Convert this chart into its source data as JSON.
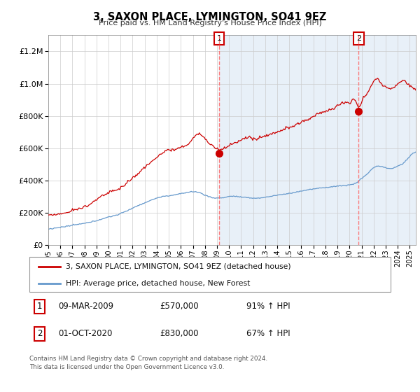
{
  "title": "3, SAXON PLACE, LYMINGTON, SO41 9EZ",
  "subtitle": "Price paid vs. HM Land Registry's House Price Index (HPI)",
  "legend_line1": "3, SAXON PLACE, LYMINGTON, SO41 9EZ (detached house)",
  "legend_line2": "HPI: Average price, detached house, New Forest",
  "footer": "Contains HM Land Registry data © Crown copyright and database right 2024.\nThis data is licensed under the Open Government Licence v3.0.",
  "sale1_date_str": "09-MAR-2009",
  "sale1_price_str": "£570,000",
  "sale1_hpi_str": "91% ↑ HPI",
  "sale2_date_str": "01-OCT-2020",
  "sale2_price_str": "£830,000",
  "sale2_hpi_str": "67% ↑ HPI",
  "sale1_year": 2009.18,
  "sale1_value": 570000,
  "sale2_year": 2020.75,
  "sale2_value": 830000,
  "red_color": "#cc0000",
  "blue_color": "#6699cc",
  "shade_color": "#e8f0f8",
  "grid_color": "#cccccc",
  "ylim": [
    0,
    1300000
  ],
  "xlim_start": 1995.0,
  "xlim_end": 2025.5
}
